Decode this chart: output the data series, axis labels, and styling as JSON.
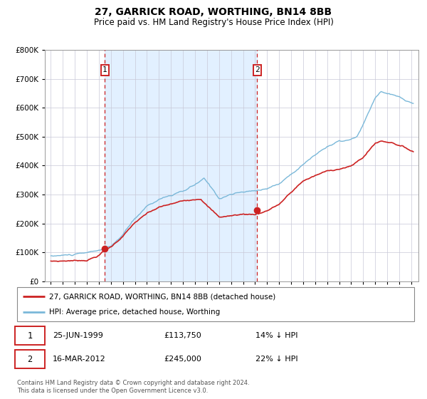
{
  "title": "27, GARRICK ROAD, WORTHING, BN14 8BB",
  "subtitle": "Price paid vs. HM Land Registry's House Price Index (HPI)",
  "sale1_annotation": "25-JUN-1999",
  "sale1_price_text": "£113,750",
  "sale1_hpi_text": "14% ↓ HPI",
  "sale1_year": 1999.4795,
  "sale1_price": 113750,
  "sale2_annotation": "16-MAR-2012",
  "sale2_price_text": "£245,000",
  "sale2_hpi_text": "22% ↓ HPI",
  "sale2_year": 2012.205,
  "sale2_price": 245000,
  "line1_label": "27, GARRICK ROAD, WORTHING, BN14 8BB (detached house)",
  "line2_label": "HPI: Average price, detached house, Worthing",
  "hpi_color": "#7ab8d9",
  "price_color": "#cc2222",
  "bg_shade_color": "#ddeeff",
  "grid_color": "#c8c8d8",
  "ylim_max": 800000,
  "footnote": "Contains HM Land Registry data © Crown copyright and database right 2024.\nThis data is licensed under the Open Government Licence v3.0."
}
